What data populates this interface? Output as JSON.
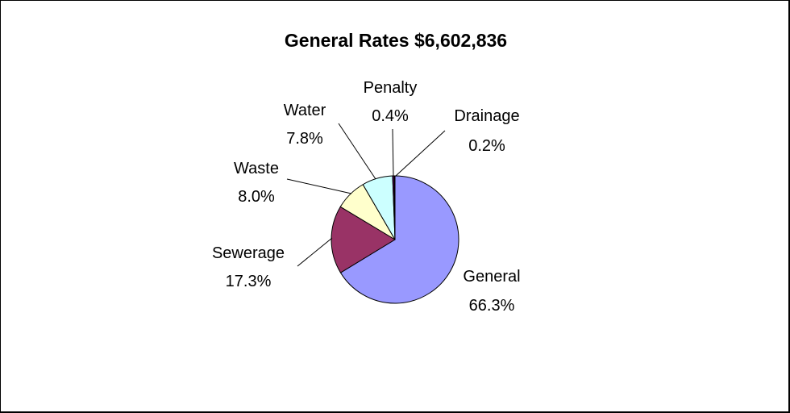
{
  "chart_data": {
    "type": "pie",
    "title": "General Rates $6,602,836",
    "slices": [
      {
        "label": "General",
        "value_text": "66.3%",
        "value": 66.3,
        "color": "#9999ff"
      },
      {
        "label": "Sewerage",
        "value_text": "17.3%",
        "value": 17.3,
        "color": "#993366"
      },
      {
        "label": "Waste",
        "value_text": "8.0%",
        "value": 8.0,
        "color": "#ffffcc"
      },
      {
        "label": "Water",
        "value_text": "7.8%",
        "value": 7.8,
        "color": "#ccffff"
      },
      {
        "label": "Penalty",
        "value_text": "0.4%",
        "value": 0.4,
        "color": "#660066"
      },
      {
        "label": "Drainage",
        "value_text": "0.2%",
        "value": 0.2,
        "color": "#ff8080"
      }
    ]
  }
}
